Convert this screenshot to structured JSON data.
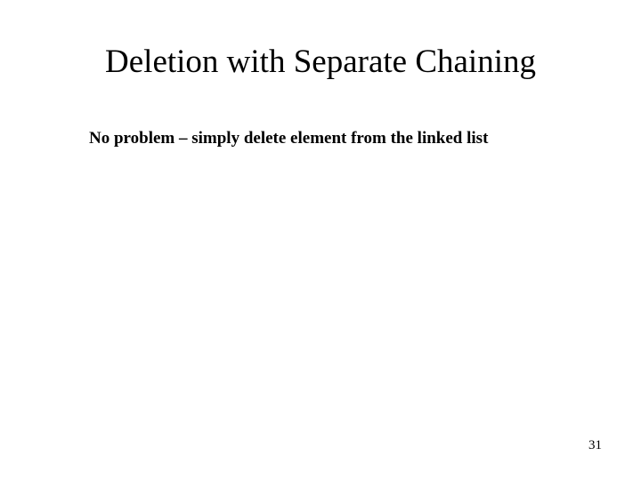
{
  "slide": {
    "title": "Deletion with Separate Chaining",
    "body": "No problem – simply delete element from the linked list",
    "page_number": "31"
  },
  "style": {
    "background_color": "#ffffff",
    "text_color": "#000000",
    "title_fontsize": 37,
    "body_fontsize": 19,
    "pagenum_fontsize": 15,
    "font_family": "Times New Roman"
  }
}
